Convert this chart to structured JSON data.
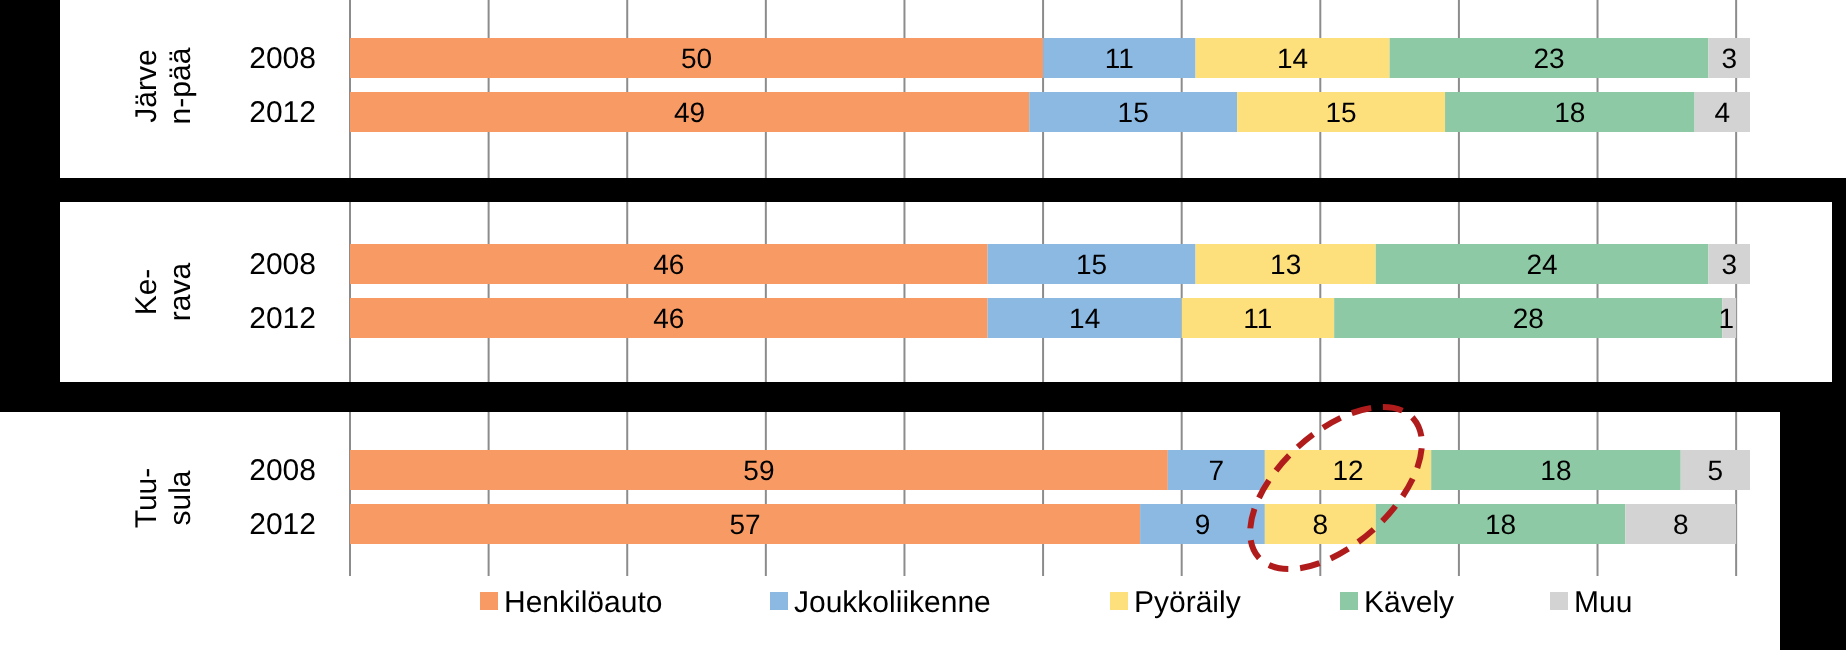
{
  "chart_data": [
    {
      "type": "bar",
      "orientation": "horizontal",
      "stacked": true,
      "data_labels": true,
      "grid": "x",
      "tick_labels": "y",
      "ylabel": "Järve n-pää",
      "categories": [
        "2008",
        "2012"
      ],
      "xlim": [
        0,
        101
      ],
      "xticks": [
        {
          "value": 0,
          "label": null
        },
        {
          "value": 10,
          "label": null
        },
        {
          "value": 20,
          "label": null
        },
        {
          "value": 30,
          "label": null
        },
        {
          "value": 40,
          "label": null
        },
        {
          "value": 50,
          "label": null
        },
        {
          "value": 60,
          "label": null
        },
        {
          "value": 70,
          "label": null
        },
        {
          "value": 80,
          "label": null
        },
        {
          "value": 90,
          "label": null
        },
        {
          "value": 100,
          "label": null
        }
      ],
      "series": [
        {
          "color": "#f79a63",
          "values": [
            50,
            49
          ]
        },
        {
          "color": "#8cb9e2",
          "values": [
            11,
            15
          ]
        },
        {
          "color": "#fde07c",
          "values": [
            14,
            15
          ]
        },
        {
          "color": "#8ec9a6",
          "values": [
            23,
            18
          ]
        },
        {
          "color": "#d3d3d3",
          "values": [
            3,
            4
          ]
        }
      ]
    },
    {
      "type": "bar",
      "orientation": "horizontal",
      "stacked": true,
      "data_labels": true,
      "grid": "x",
      "tick_labels": "y",
      "ylabel": "Ke- rava",
      "categories": [
        "2008",
        "2012"
      ],
      "xlim": [
        0,
        101
      ],
      "xticks": [
        {
          "value": 0,
          "label": null
        },
        {
          "value": 10,
          "label": null
        },
        {
          "value": 20,
          "label": null
        },
        {
          "value": 30,
          "label": null
        },
        {
          "value": 40,
          "label": null
        },
        {
          "value": 50,
          "label": null
        },
        {
          "value": 60,
          "label": null
        },
        {
          "value": 70,
          "label": null
        },
        {
          "value": 80,
          "label": null
        },
        {
          "value": 90,
          "label": null
        },
        {
          "value": 100,
          "label": null
        }
      ],
      "series": [
        {
          "color": "#f79a63",
          "values": [
            46,
            46
          ]
        },
        {
          "color": "#8cb9e2",
          "values": [
            15,
            14
          ]
        },
        {
          "color": "#fde07c",
          "values": [
            13,
            11
          ]
        },
        {
          "color": "#8ec9a6",
          "values": [
            24,
            28
          ]
        },
        {
          "color": "#d3d3d3",
          "values": [
            3,
            1
          ]
        }
      ]
    },
    {
      "type": "bar",
      "orientation": "horizontal",
      "stacked": true,
      "data_labels": true,
      "grid": "x",
      "tick_labels": "y",
      "legend": "bottom",
      "ylabel": "Tuu- sula",
      "categories": [
        "2008",
        "2012"
      ],
      "xlim": [
        0,
        101
      ],
      "xticks": [
        {
          "value": 0,
          "label": null
        },
        {
          "value": 10,
          "label": null
        },
        {
          "value": 20,
          "label": null
        },
        {
          "value": 30,
          "label": null
        },
        {
          "value": 40,
          "label": null
        },
        {
          "value": 50,
          "label": null
        },
        {
          "value": 60,
          "label": null
        },
        {
          "value": 70,
          "label": null
        },
        {
          "value": 80,
          "label": null
        },
        {
          "value": 90,
          "label": null
        },
        {
          "value": 100,
          "label": null
        }
      ],
      "series": [
        {
          "name": "Henkilöauto",
          "color": "#f79a63",
          "values": [
            59,
            57
          ]
        },
        {
          "name": "Joukkoliikenne",
          "color": "#8cb9e2",
          "values": [
            7,
            9
          ]
        },
        {
          "name": "Pyöräily",
          "color": "#fde07c",
          "values": [
            12,
            8
          ]
        },
        {
          "name": "Kävely",
          "color": "#8ec9a6",
          "values": [
            18,
            18
          ]
        },
        {
          "name": "Muu",
          "color": "#d3d3d3",
          "values": [
            5,
            8
          ]
        }
      ]
    }
  ]
}
